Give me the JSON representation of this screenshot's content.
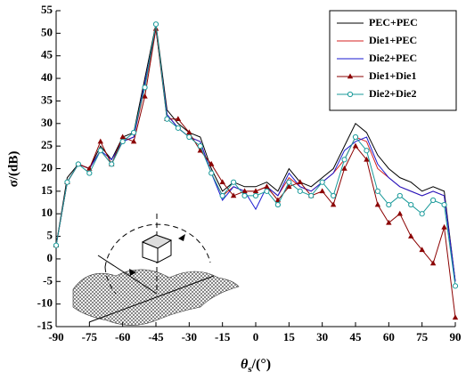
{
  "chart_data": {
    "type": "line",
    "y_label": "σ/(dB)",
    "x_label": {
      "symbol": "θ",
      "subscript": "s",
      "unit": "/(°)"
    },
    "x": [
      -90,
      -85,
      -80,
      -75,
      -70,
      -65,
      -60,
      -55,
      -50,
      -45,
      -40,
      -35,
      -30,
      -25,
      -20,
      -15,
      -10,
      -5,
      0,
      5,
      10,
      15,
      20,
      25,
      30,
      35,
      40,
      45,
      50,
      55,
      60,
      65,
      70,
      75,
      80,
      85,
      90
    ],
    "xlim": [
      -90,
      90
    ],
    "xticks": [
      -90,
      -75,
      -60,
      -45,
      -30,
      -15,
      0,
      15,
      30,
      45,
      60,
      75,
      90
    ],
    "ylim": [
      -15,
      55
    ],
    "yticks": [
      -15,
      -10,
      -5,
      0,
      5,
      10,
      15,
      20,
      25,
      30,
      35,
      40,
      45,
      50,
      55
    ],
    "legend": "upper right",
    "series": [
      {
        "name": "PEC+PEC",
        "color": "#000000",
        "marker": "none",
        "values": [
          3,
          18,
          21,
          20,
          25,
          22,
          27,
          28,
          40,
          52,
          33,
          30,
          28,
          27,
          20,
          15,
          17,
          16,
          16,
          17,
          15,
          20,
          17,
          16,
          18,
          20,
          25,
          30,
          28,
          23,
          20,
          18,
          17,
          15,
          16,
          15,
          -5
        ]
      },
      {
        "name": "Die1+PEC",
        "color": "#d42020",
        "marker": "none",
        "values": [
          3,
          17,
          21,
          20,
          24,
          21,
          26,
          27,
          38,
          51,
          32,
          29,
          27,
          26,
          19,
          14,
          16,
          15,
          15,
          16,
          14,
          18,
          16,
          15,
          17,
          19,
          22,
          27,
          26,
          20,
          18,
          16,
          15,
          14,
          15,
          14,
          -5
        ]
      },
      {
        "name": "Die2+PEC",
        "color": "#1a1ad0",
        "marker": "none",
        "values": [
          3,
          17,
          21,
          20,
          24,
          22,
          26,
          27,
          39,
          51,
          32,
          29,
          27,
          26,
          19,
          13,
          16,
          15,
          11,
          16,
          14,
          19,
          16,
          15,
          17,
          19,
          24,
          26,
          27,
          21,
          18,
          16,
          15,
          14,
          15,
          14,
          -5
        ]
      },
      {
        "name": "Die1+Die1",
        "color": "#8b0000",
        "marker": "triangle",
        "values": [
          3,
          17,
          21,
          20,
          26,
          21,
          27,
          26,
          36,
          51,
          31,
          31,
          28,
          24,
          21,
          17,
          14,
          15,
          15,
          16,
          13,
          16,
          17,
          14,
          15,
          12,
          20,
          25,
          22,
          12,
          8,
          10,
          5,
          2,
          -1,
          7,
          -13
        ]
      },
      {
        "name": "Die2+Die2",
        "color": "#1a9a9a",
        "marker": "circle",
        "values": [
          3,
          17,
          21,
          19,
          24,
          21,
          26,
          28,
          38,
          52,
          31,
          29,
          27,
          25,
          19,
          14,
          17,
          14,
          14,
          15,
          12,
          17,
          15,
          14,
          17,
          14,
          22,
          27,
          24,
          15,
          12,
          14,
          12,
          10,
          13,
          12,
          -6
        ]
      }
    ]
  }
}
